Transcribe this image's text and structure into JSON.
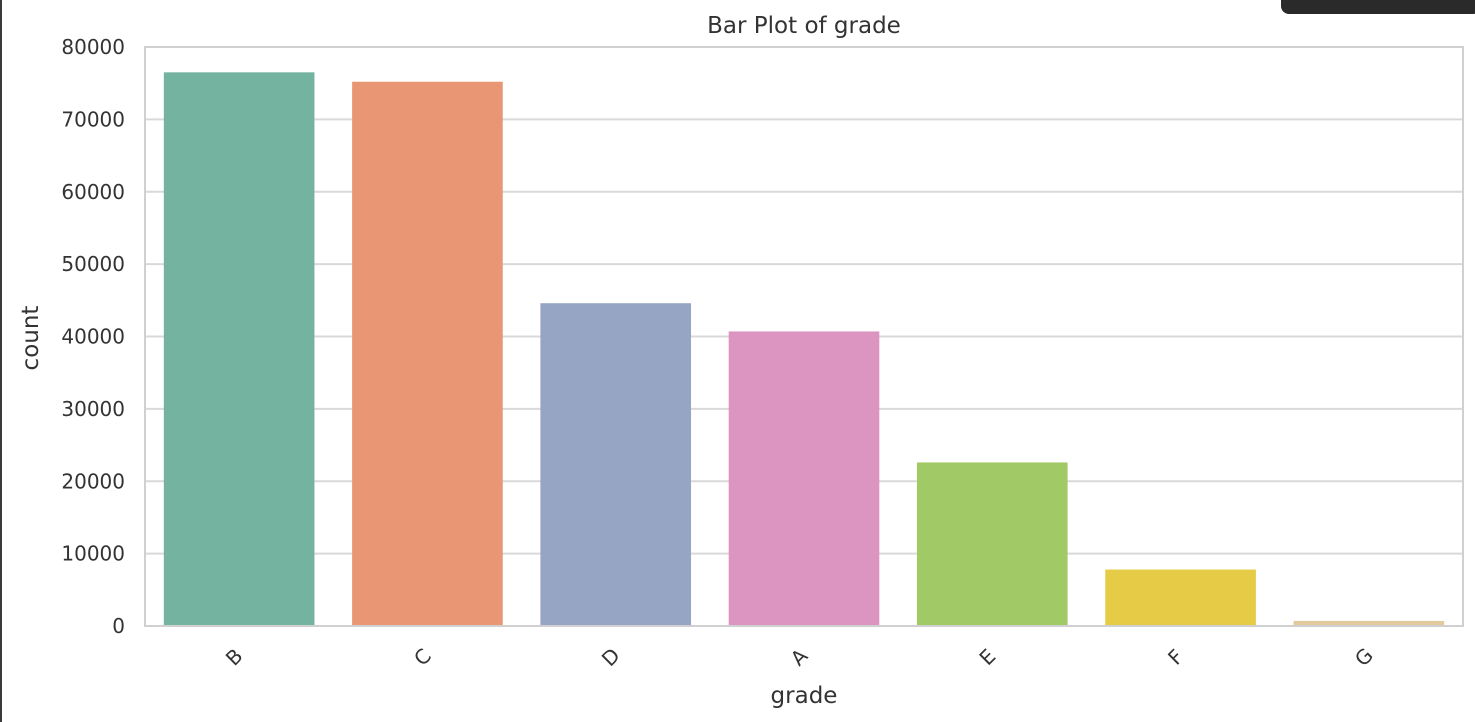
{
  "chart_data": {
    "type": "bar",
    "title": "Bar Plot of grade",
    "xlabel": "grade",
    "ylabel": "count",
    "categories": [
      "B",
      "C",
      "D",
      "A",
      "E",
      "F",
      "G"
    ],
    "values": [
      76500,
      75200,
      44600,
      40700,
      22600,
      7800,
      700
    ],
    "colors": [
      "#73b3a0",
      "#e99674",
      "#95a5c3",
      "#dc95c0",
      "#a1c965",
      "#e6cb46",
      "#e4c89e"
    ],
    "ylim": [
      0,
      80000
    ],
    "yticks": [
      0,
      10000,
      20000,
      30000,
      40000,
      50000,
      60000,
      70000,
      80000
    ],
    "ytick_labels": [
      "0",
      "10000",
      "20000",
      "30000",
      "40000",
      "50000",
      "60000",
      "70000",
      "80000"
    ],
    "grid": true,
    "xtick_rotation": 45
  },
  "colors": {
    "grid": "#d9d9d9",
    "axes_edge": "#d0d0d0",
    "text": "#333333"
  }
}
